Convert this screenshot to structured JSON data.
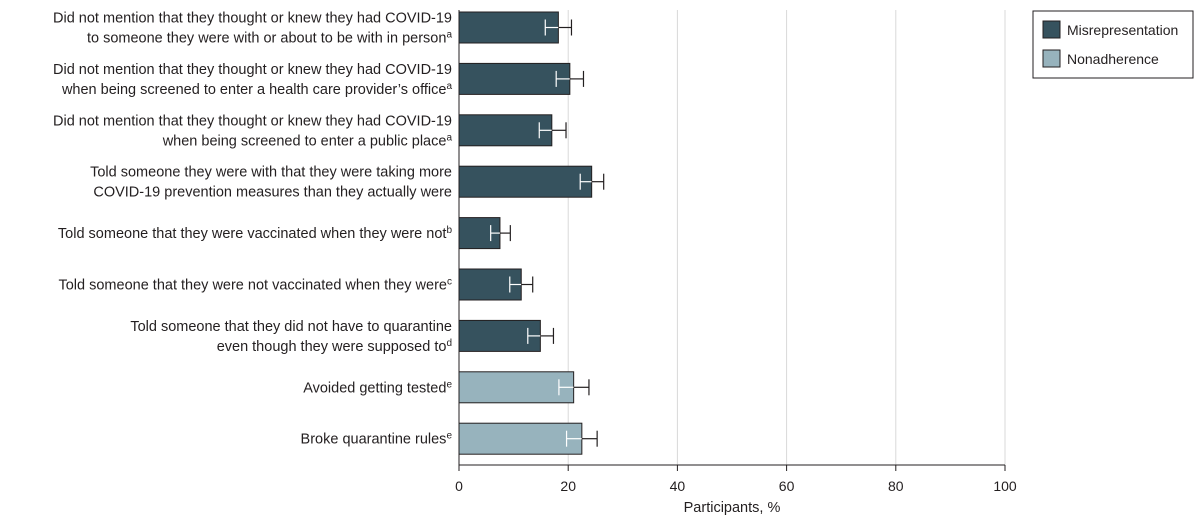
{
  "chart_data": {
    "type": "bar",
    "orientation": "horizontal",
    "xlabel": "Participants, %",
    "xlim": [
      0,
      100
    ],
    "xticks": [
      0,
      20,
      40,
      60,
      80,
      100
    ],
    "grid": "vertical",
    "legend_position": "top-right",
    "legend": [
      {
        "name": "Misrepresentation",
        "color": "#36525e"
      },
      {
        "name": "Nonadherence",
        "color": "#97b3bd"
      }
    ],
    "categories": [
      {
        "lines": [
          {
            "text": "Did not mention that they thought or knew they had COVID-19"
          },
          {
            "text": "to someone they were with or about to be with in person",
            "sup": "a"
          }
        ],
        "value": 18.2,
        "ci": [
          15.8,
          20.6
        ],
        "group": "Misrepresentation"
      },
      {
        "lines": [
          {
            "text": "Did not mention that they thought or knew they had COVID-19"
          },
          {
            "text": "when being screened to enter a health care provider’s office",
            "sup": "a"
          }
        ],
        "value": 20.3,
        "ci": [
          17.8,
          22.8
        ],
        "group": "Misrepresentation"
      },
      {
        "lines": [
          {
            "text": "Did not mention that they thought or knew they had COVID-19"
          },
          {
            "text": "when being screened to enter a public place",
            "sup": "a"
          }
        ],
        "value": 17.0,
        "ci": [
          14.7,
          19.6
        ],
        "group": "Misrepresentation"
      },
      {
        "lines": [
          {
            "text": "Told someone they were with that they were taking more"
          },
          {
            "text": "COVID-19 prevention measures than they actually were"
          }
        ],
        "value": 24.3,
        "ci": [
          22.2,
          26.5
        ],
        "group": "Misrepresentation"
      },
      {
        "lines": [
          {
            "text": "Told someone that they were vaccinated when they were not",
            "sup": "b"
          }
        ],
        "value": 7.5,
        "ci": [
          5.8,
          9.4
        ],
        "group": "Misrepresentation"
      },
      {
        "lines": [
          {
            "text": "Told someone that they were not vaccinated when they were",
            "sup": "c"
          }
        ],
        "value": 11.4,
        "ci": [
          9.3,
          13.5
        ],
        "group": "Misrepresentation"
      },
      {
        "lines": [
          {
            "text": "Told someone that they did not have to quarantine"
          },
          {
            "text": "even though they were supposed to",
            "sup": "d"
          }
        ],
        "value": 14.9,
        "ci": [
          12.6,
          17.3
        ],
        "group": "Misrepresentation"
      },
      {
        "lines": [
          {
            "text": "Avoided getting tested",
            "sup": "e"
          }
        ],
        "value": 21.0,
        "ci": [
          18.3,
          23.8
        ],
        "group": "Nonadherence"
      },
      {
        "lines": [
          {
            "text": "Broke quarantine rules",
            "sup": "e"
          }
        ],
        "value": 22.5,
        "ci": [
          19.7,
          25.3
        ],
        "group": "Nonadherence"
      }
    ]
  }
}
